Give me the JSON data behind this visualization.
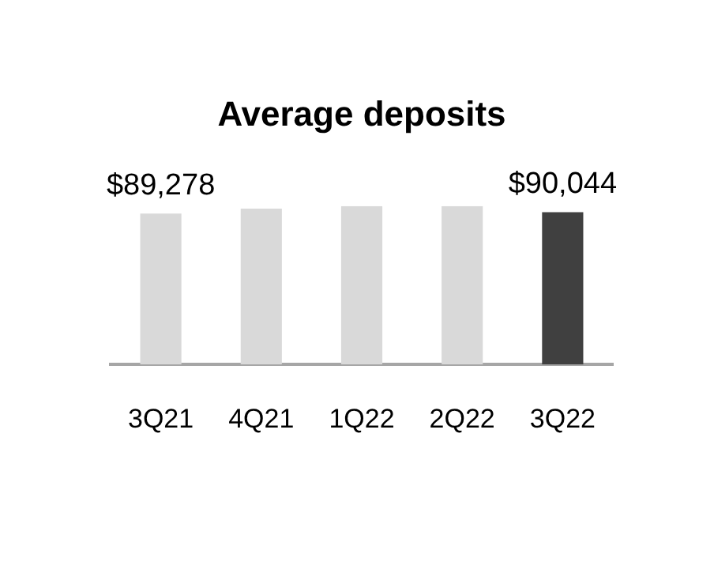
{
  "chart_data": {
    "type": "bar",
    "title": "Average deposits",
    "categories": [
      "3Q21",
      "4Q21",
      "1Q22",
      "2Q22",
      "3Q22"
    ],
    "values": [
      89278,
      92250,
      93700,
      93700,
      90044
    ],
    "colors": [
      "#d9d9d9",
      "#d9d9d9",
      "#d9d9d9",
      "#d9d9d9",
      "#404040"
    ],
    "value_labels": [
      "$89,278",
      null,
      null,
      null,
      "$90,044"
    ],
    "grid": false,
    "legend": false
  }
}
